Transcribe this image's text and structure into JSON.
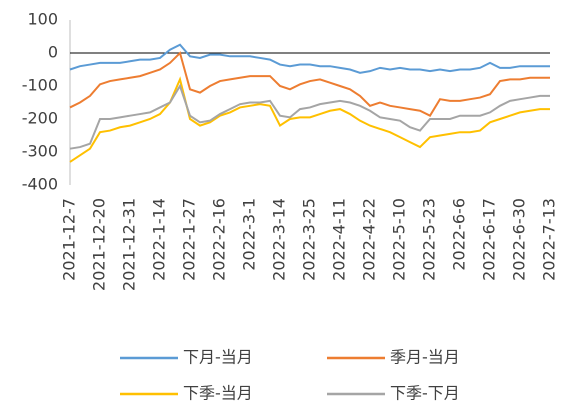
{
  "chart_data": {
    "type": "line",
    "categories": [
      "2021-12-7",
      null,
      null,
      "2021-12-20",
      null,
      null,
      "2021-12-31",
      null,
      null,
      "2022-1-14",
      null,
      null,
      "2022-1-27",
      null,
      null,
      "2022-2-16",
      null,
      null,
      "2022-3-1",
      null,
      null,
      "2022-3-14",
      null,
      null,
      "2022-3-25",
      null,
      null,
      "2022-4-11",
      null,
      null,
      "2022-4-22",
      null,
      null,
      "2022-5-10",
      null,
      null,
      "2022-5-23",
      null,
      null,
      "2022-6-6",
      null,
      null,
      "2022-6-17",
      null,
      null,
      "2022-6-30",
      null,
      null,
      "2022-7-13"
    ],
    "series": [
      {
        "name": "下月-当月",
        "color": "#5b9bd5",
        "values": [
          -50,
          -40,
          -35,
          -30,
          -30,
          -30,
          -25,
          -20,
          -20,
          -15,
          10,
          25,
          -10,
          -15,
          -5,
          -5,
          -10,
          -10,
          -10,
          -15,
          -20,
          -35,
          -40,
          -35,
          -35,
          -40,
          -40,
          -45,
          -50,
          -60,
          -55,
          -45,
          -50,
          -45,
          -50,
          -50,
          -55,
          -50,
          -55,
          -50,
          -50,
          -45,
          -30,
          -45,
          -45,
          -40,
          -40,
          -40,
          -40
        ]
      },
      {
        "name": "季月-当月",
        "color": "#ed7d31",
        "values": [
          -165,
          -150,
          -130,
          -95,
          -85,
          -80,
          -75,
          -70,
          -60,
          -50,
          -30,
          0,
          -110,
          -120,
          -100,
          -85,
          -80,
          -75,
          -70,
          -70,
          -70,
          -100,
          -110,
          -95,
          -85,
          -80,
          -90,
          -100,
          -110,
          -130,
          -160,
          -150,
          -160,
          -165,
          -170,
          -175,
          -190,
          -140,
          -145,
          -145,
          -140,
          -135,
          -125,
          -85,
          -80,
          -80,
          -75,
          -75,
          -75
        ]
      },
      {
        "name": "下季-当月",
        "color": "#ffc000",
        "values": [
          -330,
          -310,
          -290,
          -240,
          -235,
          -225,
          -220,
          -210,
          -200,
          -185,
          -150,
          -80,
          -200,
          -220,
          -210,
          -190,
          -180,
          -165,
          -160,
          -155,
          -160,
          -220,
          -200,
          -195,
          -195,
          -185,
          -175,
          -170,
          -185,
          -205,
          -220,
          -230,
          -240,
          -255,
          -270,
          -285,
          -255,
          -250,
          -245,
          -240,
          -240,
          -235,
          -210,
          -200,
          -190,
          -180,
          -175,
          -170,
          -170
        ]
      },
      {
        "name": "下季-下月",
        "color": "#a5a5a5",
        "values": [
          -290,
          -285,
          -275,
          -200,
          -200,
          -195,
          -190,
          -185,
          -180,
          -165,
          -150,
          -100,
          -190,
          -210,
          -205,
          -185,
          -170,
          -155,
          -150,
          -150,
          -145,
          -190,
          -195,
          -170,
          -165,
          -155,
          -150,
          -145,
          -150,
          -160,
          -175,
          -195,
          -200,
          -205,
          -225,
          -235,
          -200,
          -200,
          -200,
          -190,
          -190,
          -190,
          -180,
          -160,
          -145,
          -140,
          -135,
          -130,
          -130
        ]
      }
    ],
    "ylim": [
      -400,
      100
    ],
    "yticks": [
      -400,
      -300,
      -200,
      -100,
      0,
      100
    ]
  }
}
